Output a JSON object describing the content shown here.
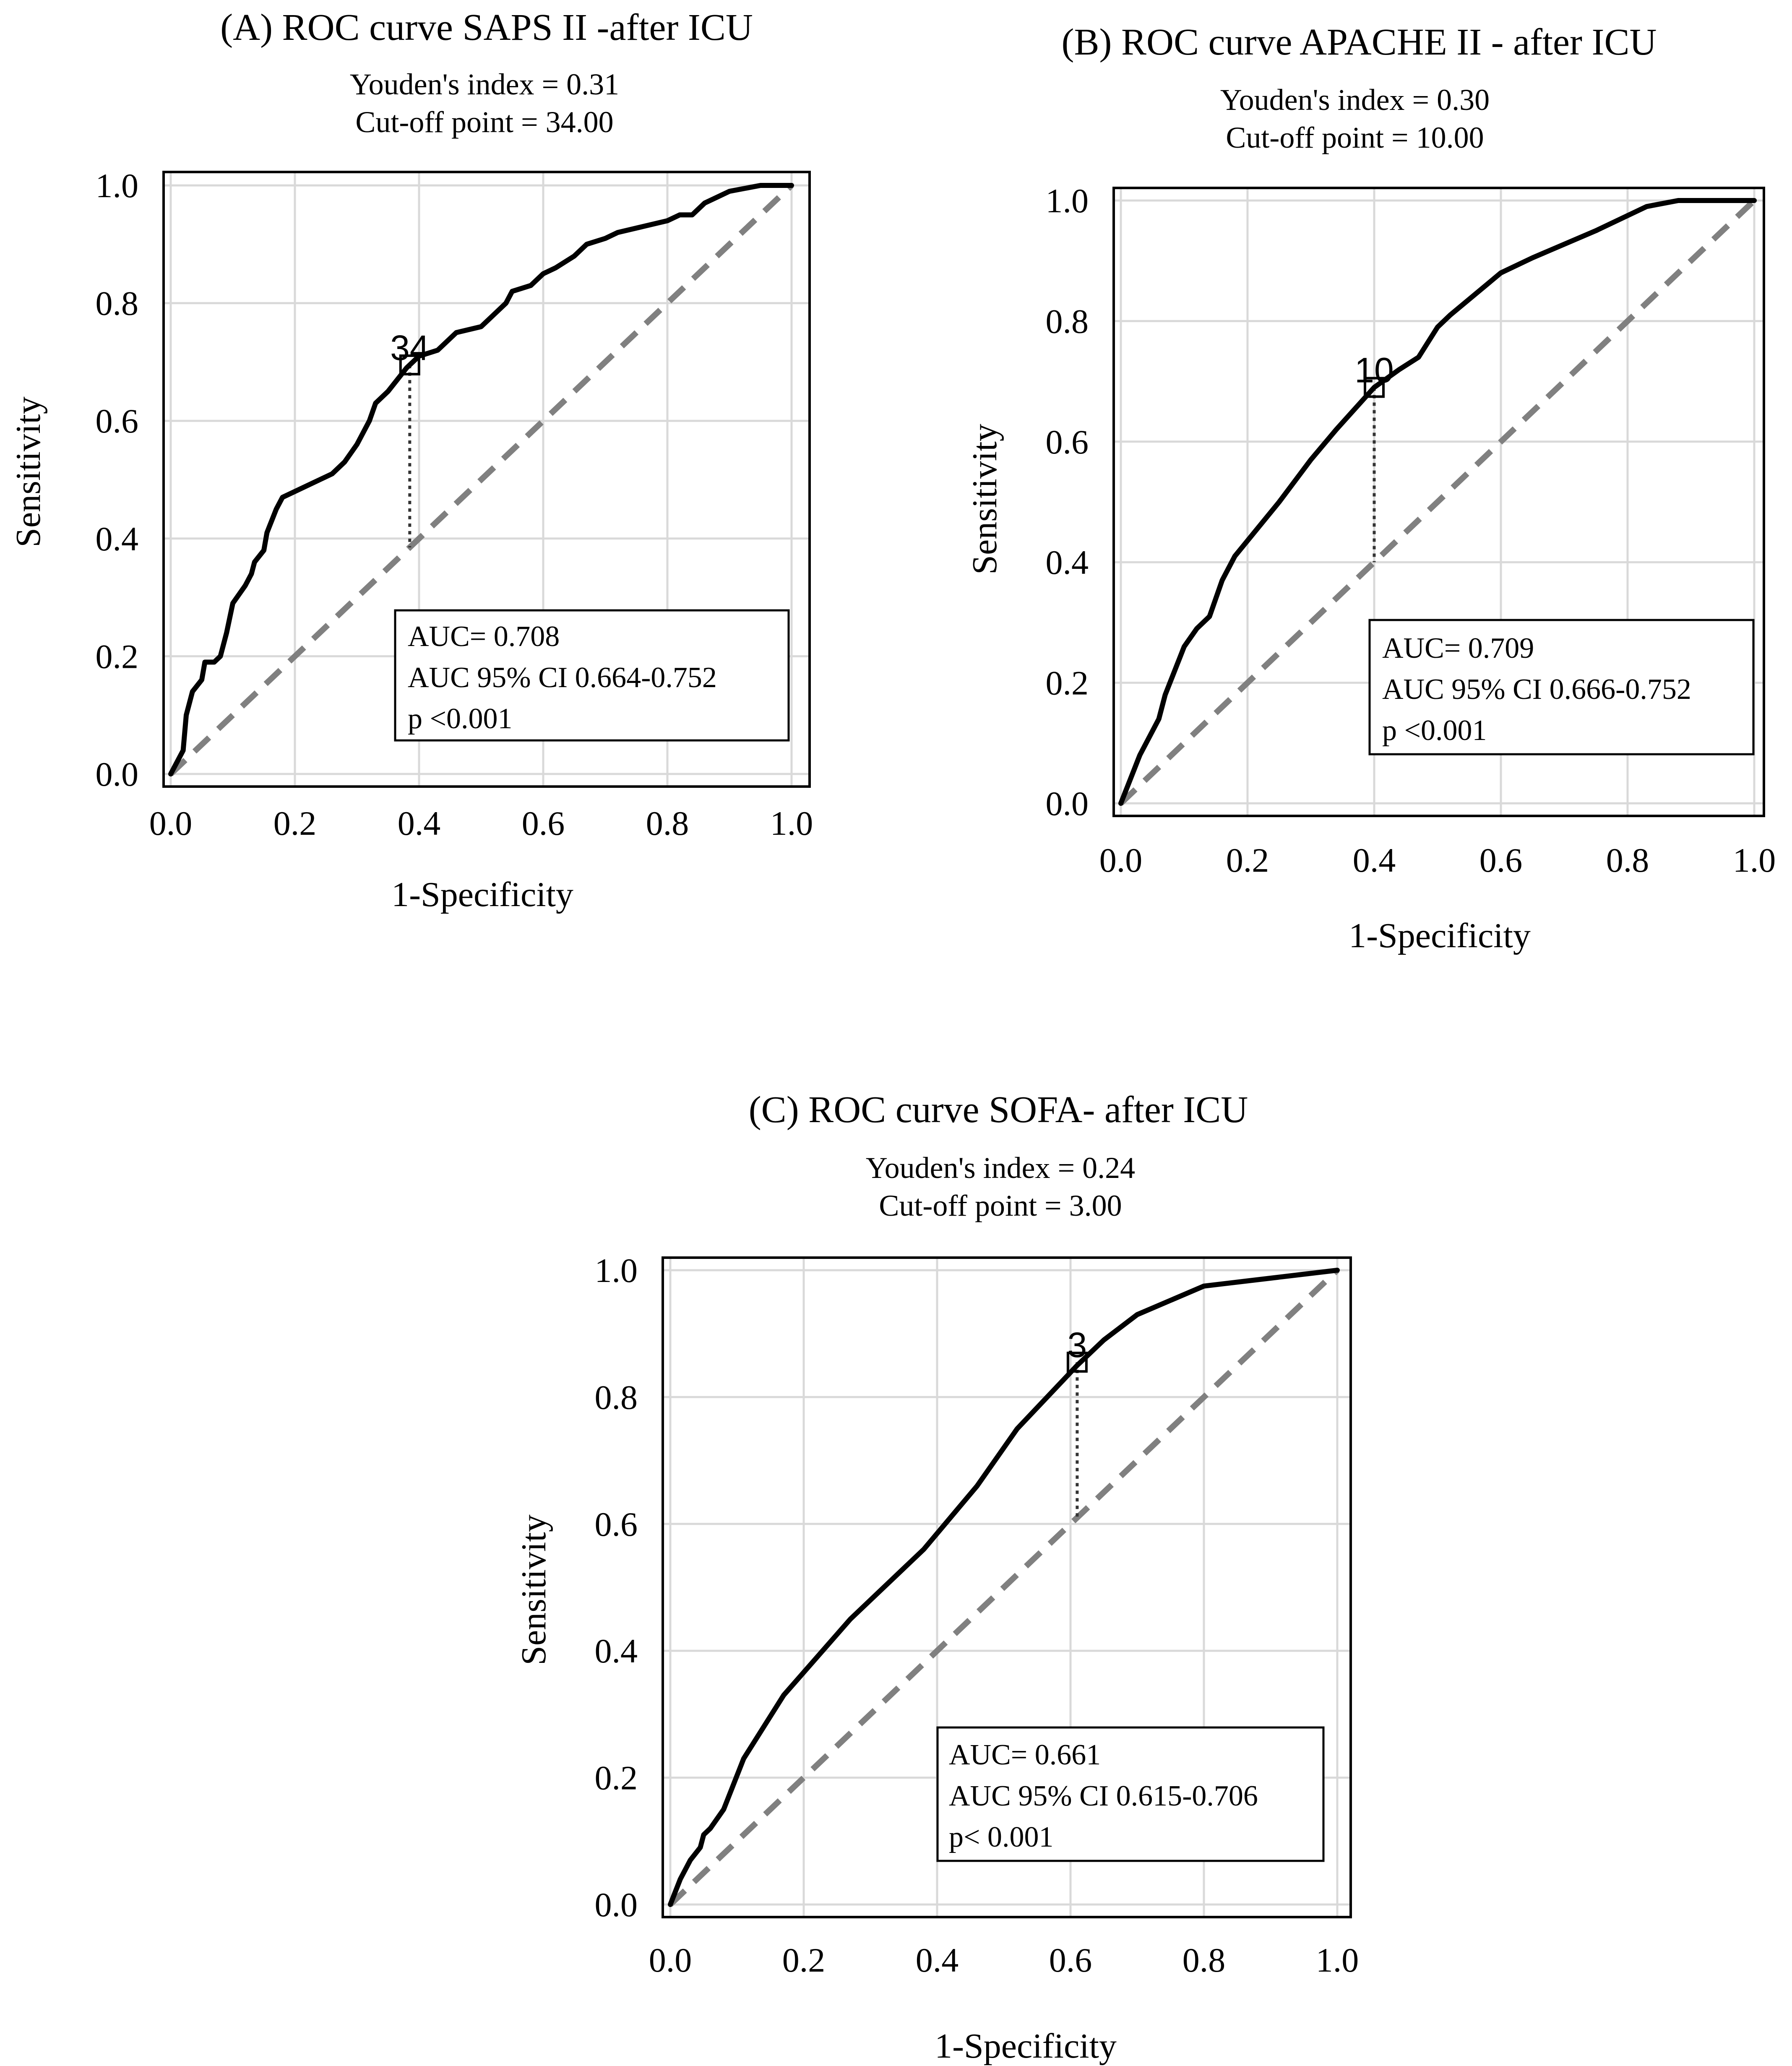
{
  "colors": {
    "curve": "#000000",
    "reference": "#808080",
    "grid": "#d9d9d9",
    "frame": "#000000",
    "background": "#ffffff"
  },
  "chart_data": [
    {
      "type": "line",
      "title": "(A) ROC curve SAPS II -after ICU",
      "subtitle_lines": [
        "Youden's index = 0.31",
        "Cut-off point = 34.00"
      ],
      "xlabel": "1-Specificity",
      "ylabel": "Sensitivity",
      "xlim": [
        0,
        1
      ],
      "ylim": [
        0,
        1
      ],
      "grid": true,
      "x_ticks": [
        "0.0",
        "0.2",
        "0.4",
        "0.6",
        "0.8",
        "1.0"
      ],
      "y_ticks": [
        "0.0",
        "0.2",
        "0.4",
        "0.6",
        "0.8",
        "1.0"
      ],
      "series": [
        {
          "name": "ROC",
          "points": [
            [
              0,
              0
            ],
            [
              0.01,
              0.02
            ],
            [
              0.02,
              0.04
            ],
            [
              0.025,
              0.1
            ],
            [
              0.035,
              0.14
            ],
            [
              0.05,
              0.16
            ],
            [
              0.055,
              0.19
            ],
            [
              0.07,
              0.19
            ],
            [
              0.08,
              0.2
            ],
            [
              0.09,
              0.24
            ],
            [
              0.1,
              0.29
            ],
            [
              0.12,
              0.32
            ],
            [
              0.13,
              0.34
            ],
            [
              0.135,
              0.36
            ],
            [
              0.15,
              0.38
            ],
            [
              0.155,
              0.41
            ],
            [
              0.17,
              0.45
            ],
            [
              0.18,
              0.47
            ],
            [
              0.2,
              0.48
            ],
            [
              0.24,
              0.5
            ],
            [
              0.26,
              0.51
            ],
            [
              0.28,
              0.53
            ],
            [
              0.3,
              0.56
            ],
            [
              0.32,
              0.6
            ],
            [
              0.33,
              0.63
            ],
            [
              0.35,
              0.65
            ],
            [
              0.38,
              0.69
            ],
            [
              0.4,
              0.71
            ],
            [
              0.43,
              0.72
            ],
            [
              0.45,
              0.74
            ],
            [
              0.46,
              0.75
            ],
            [
              0.5,
              0.76
            ],
            [
              0.52,
              0.78
            ],
            [
              0.54,
              0.8
            ],
            [
              0.55,
              0.82
            ],
            [
              0.58,
              0.83
            ],
            [
              0.6,
              0.85
            ],
            [
              0.62,
              0.86
            ],
            [
              0.65,
              0.88
            ],
            [
              0.67,
              0.9
            ],
            [
              0.7,
              0.91
            ],
            [
              0.72,
              0.92
            ],
            [
              0.76,
              0.93
            ],
            [
              0.8,
              0.94
            ],
            [
              0.82,
              0.95
            ],
            [
              0.84,
              0.95
            ],
            [
              0.86,
              0.97
            ],
            [
              0.88,
              0.98
            ],
            [
              0.9,
              0.99
            ],
            [
              0.95,
              1.0
            ],
            [
              1.0,
              1.0
            ]
          ]
        },
        {
          "name": "Reference",
          "points": [
            [
              0,
              0
            ],
            [
              1,
              1
            ]
          ]
        }
      ],
      "cutoff": {
        "label": "34",
        "x": 0.385,
        "y": 0.695,
        "ref_y": 0.385
      },
      "annotation_lines": [
        "AUC= 0.708",
        "AUC 95% CI 0.664-0.752",
        "p <0.001"
      ]
    },
    {
      "type": "line",
      "title": "(B) ROC curve APACHE II - after ICU",
      "subtitle_lines": [
        "Youden's index = 0.30",
        "Cut-off point = 10.00"
      ],
      "xlabel": "1-Specificity",
      "ylabel": "Sensitivity",
      "xlim": [
        0,
        1
      ],
      "ylim": [
        0,
        1
      ],
      "grid": true,
      "x_ticks": [
        "0.0",
        "0.2",
        "0.4",
        "0.6",
        "0.8",
        "1.0"
      ],
      "y_ticks": [
        "0.0",
        "0.2",
        "0.4",
        "0.6",
        "0.8",
        "1.0"
      ],
      "series": [
        {
          "name": "ROC",
          "points": [
            [
              0,
              0
            ],
            [
              0.015,
              0.04
            ],
            [
              0.03,
              0.08
            ],
            [
              0.06,
              0.14
            ],
            [
              0.07,
              0.18
            ],
            [
              0.1,
              0.26
            ],
            [
              0.12,
              0.29
            ],
            [
              0.14,
              0.31
            ],
            [
              0.16,
              0.37
            ],
            [
              0.18,
              0.41
            ],
            [
              0.25,
              0.5
            ],
            [
              0.3,
              0.57
            ],
            [
              0.34,
              0.62
            ],
            [
              0.4,
              0.69
            ],
            [
              0.44,
              0.72
            ],
            [
              0.47,
              0.74
            ],
            [
              0.5,
              0.79
            ],
            [
              0.52,
              0.81
            ],
            [
              0.6,
              0.88
            ],
            [
              0.65,
              0.905
            ],
            [
              0.75,
              0.95
            ],
            [
              0.83,
              0.99
            ],
            [
              0.88,
              1.0
            ],
            [
              1.0,
              1.0
            ]
          ]
        },
        {
          "name": "Reference",
          "points": [
            [
              0,
              0
            ],
            [
              1,
              1
            ]
          ]
        }
      ],
      "cutoff": {
        "label": "10",
        "x": 0.4,
        "y": 0.69,
        "ref_y": 0.4
      },
      "annotation_lines": [
        "AUC= 0.709",
        "AUC 95% CI 0.666-0.752",
        "p <0.001"
      ]
    },
    {
      "type": "line",
      "title": "(C) ROC curve SOFA- after ICU",
      "subtitle_lines": [
        "Youden's index = 0.24",
        "Cut-off point = 3.00"
      ],
      "xlabel": "1-Specificity",
      "ylabel": "Sensitivity",
      "xlim": [
        0,
        1
      ],
      "ylim": [
        0,
        1
      ],
      "grid": true,
      "x_ticks": [
        "0.0",
        "0.2",
        "0.4",
        "0.6",
        "0.8",
        "1.0"
      ],
      "y_ticks": [
        "0.0",
        "0.2",
        "0.4",
        "0.6",
        "0.8",
        "1.0"
      ],
      "series": [
        {
          "name": "ROC",
          "points": [
            [
              0,
              0
            ],
            [
              0.015,
              0.04
            ],
            [
              0.03,
              0.07
            ],
            [
              0.045,
              0.09
            ],
            [
              0.05,
              0.11
            ],
            [
              0.06,
              0.12
            ],
            [
              0.08,
              0.15
            ],
            [
              0.11,
              0.23
            ],
            [
              0.17,
              0.33
            ],
            [
              0.27,
              0.45
            ],
            [
              0.38,
              0.56
            ],
            [
              0.46,
              0.66
            ],
            [
              0.52,
              0.75
            ],
            [
              0.61,
              0.85
            ],
            [
              0.65,
              0.89
            ],
            [
              0.7,
              0.93
            ],
            [
              0.8,
              0.975
            ],
            [
              1.0,
              1.0
            ]
          ]
        },
        {
          "name": "Reference",
          "points": [
            [
              0,
              0
            ],
            [
              1,
              1
            ]
          ]
        }
      ],
      "cutoff": {
        "label": "3",
        "x": 0.61,
        "y": 0.855,
        "ref_y": 0.61
      },
      "annotation_lines": [
        "AUC= 0.661",
        "AUC 95% CI 0.615-0.706",
        "p< 0.001"
      ]
    }
  ]
}
